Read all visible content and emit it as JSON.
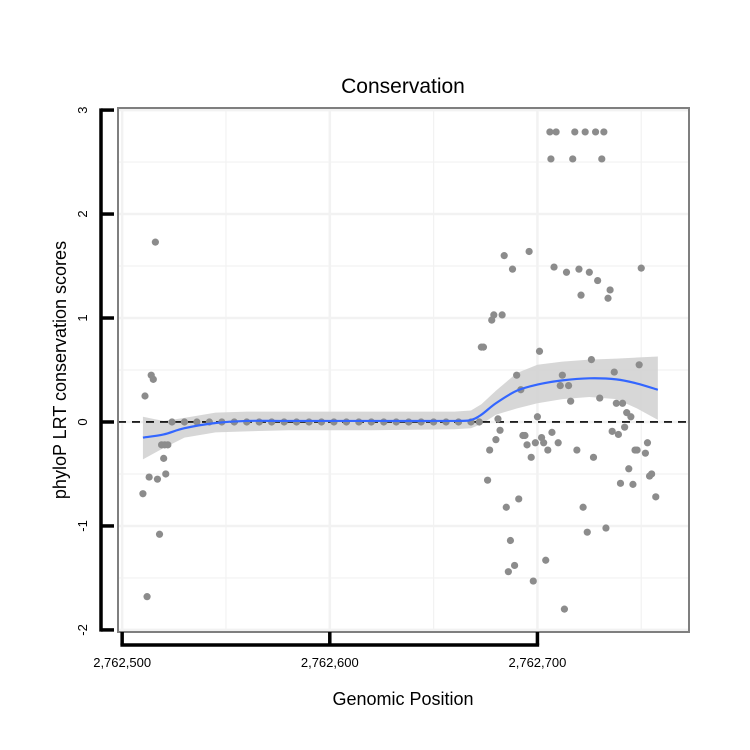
{
  "chart_data": {
    "type": "scatter",
    "title": "Conservation",
    "xlabel": "Genomic Position",
    "ylabel": "phyloP LRT conservation scores",
    "xlim": [
      2762498,
      2762773
    ],
    "ylim": [
      -2.02,
      3.02
    ],
    "x_ticks": [
      {
        "value": 2762500,
        "label": "2,762,500"
      },
      {
        "value": 2762600,
        "label": "2,762,600"
      },
      {
        "value": 2762700,
        "label": "2,762,700"
      }
    ],
    "y_ticks": [
      {
        "value": -2,
        "label": "-2"
      },
      {
        "value": -1,
        "label": "-1"
      },
      {
        "value": 0,
        "label": "0"
      },
      {
        "value": 1,
        "label": "1"
      },
      {
        "value": 2,
        "label": "2"
      },
      {
        "value": 3,
        "label": "3"
      }
    ],
    "reference_line": {
      "y": 0,
      "style": "dashed",
      "color": "#000000"
    },
    "colors": {
      "points": "#8c8c8c",
      "smooth_line": "#3366ff",
      "confidence_band": "#d3d3d3",
      "grid": "#f2f2f2",
      "panel_border": "#7f7f7f"
    },
    "points": [
      {
        "x": 2762510,
        "y": -0.69
      },
      {
        "x": 2762511,
        "y": 0.25
      },
      {
        "x": 2762512,
        "y": -1.68
      },
      {
        "x": 2762513,
        "y": -0.53
      },
      {
        "x": 2762514,
        "y": 0.45
      },
      {
        "x": 2762515,
        "y": 0.41
      },
      {
        "x": 2762516,
        "y": 1.73
      },
      {
        "x": 2762517,
        "y": -0.55
      },
      {
        "x": 2762518,
        "y": -1.08
      },
      {
        "x": 2762519,
        "y": -0.22
      },
      {
        "x": 2762520,
        "y": -0.35
      },
      {
        "x": 2762520.5,
        "y": -0.22
      },
      {
        "x": 2762521,
        "y": -0.5
      },
      {
        "x": 2762522,
        "y": -0.22
      },
      {
        "x": 2762524,
        "y": 0
      },
      {
        "x": 2762530,
        "y": 0
      },
      {
        "x": 2762536,
        "y": 0
      },
      {
        "x": 2762542,
        "y": 0
      },
      {
        "x": 2762548,
        "y": 0
      },
      {
        "x": 2762554,
        "y": 0
      },
      {
        "x": 2762560,
        "y": 0
      },
      {
        "x": 2762566,
        "y": 0
      },
      {
        "x": 2762572,
        "y": 0
      },
      {
        "x": 2762578,
        "y": 0
      },
      {
        "x": 2762584,
        "y": 0
      },
      {
        "x": 2762590,
        "y": 0
      },
      {
        "x": 2762596,
        "y": 0
      },
      {
        "x": 2762602,
        "y": 0
      },
      {
        "x": 2762608,
        "y": 0
      },
      {
        "x": 2762614,
        "y": 0
      },
      {
        "x": 2762620,
        "y": 0
      },
      {
        "x": 2762626,
        "y": 0
      },
      {
        "x": 2762632,
        "y": 0
      },
      {
        "x": 2762638,
        "y": 0
      },
      {
        "x": 2762644,
        "y": 0
      },
      {
        "x": 2762650,
        "y": 0
      },
      {
        "x": 2762656,
        "y": 0
      },
      {
        "x": 2762662,
        "y": 0
      },
      {
        "x": 2762668,
        "y": 0
      },
      {
        "x": 2762672,
        "y": 0
      },
      {
        "x": 2762673,
        "y": 0.72
      },
      {
        "x": 2762674,
        "y": 0.72
      },
      {
        "x": 2762676,
        "y": -0.56
      },
      {
        "x": 2762677,
        "y": -0.27
      },
      {
        "x": 2762678,
        "y": 0.98
      },
      {
        "x": 2762679,
        "y": 1.03
      },
      {
        "x": 2762680,
        "y": -0.17
      },
      {
        "x": 2762681,
        "y": 0.03
      },
      {
        "x": 2762682,
        "y": -0.08
      },
      {
        "x": 2762683,
        "y": 1.03
      },
      {
        "x": 2762684,
        "y": 1.6
      },
      {
        "x": 2762685,
        "y": -0.82
      },
      {
        "x": 2762686,
        "y": -1.44
      },
      {
        "x": 2762687,
        "y": -1.14
      },
      {
        "x": 2762688,
        "y": 1.47
      },
      {
        "x": 2762689,
        "y": -1.38
      },
      {
        "x": 2762690,
        "y": 0.45
      },
      {
        "x": 2762691,
        "y": -0.74
      },
      {
        "x": 2762692,
        "y": 0.31
      },
      {
        "x": 2762693,
        "y": -0.13
      },
      {
        "x": 2762694,
        "y": -0.13
      },
      {
        "x": 2762695,
        "y": -0.22
      },
      {
        "x": 2762696,
        "y": 1.64
      },
      {
        "x": 2762697,
        "y": -0.34
      },
      {
        "x": 2762698,
        "y": -1.53
      },
      {
        "x": 2762699,
        "y": -0.2
      },
      {
        "x": 2762700,
        "y": 0.05
      },
      {
        "x": 2762701,
        "y": 0.68
      },
      {
        "x": 2762702,
        "y": -0.15
      },
      {
        "x": 2762703,
        "y": -0.2
      },
      {
        "x": 2762704,
        "y": -1.33
      },
      {
        "x": 2762705,
        "y": -0.27
      },
      {
        "x": 2762706,
        "y": 2.79
      },
      {
        "x": 2762706.5,
        "y": 2.53
      },
      {
        "x": 2762707,
        "y": -0.1
      },
      {
        "x": 2762708,
        "y": 1.49
      },
      {
        "x": 2762709,
        "y": 2.79
      },
      {
        "x": 2762710,
        "y": -0.2
      },
      {
        "x": 2762711,
        "y": 0.35
      },
      {
        "x": 2762712,
        "y": 0.45
      },
      {
        "x": 2762713,
        "y": -1.8
      },
      {
        "x": 2762714,
        "y": 1.44
      },
      {
        "x": 2762715,
        "y": 0.35
      },
      {
        "x": 2762716,
        "y": 0.2
      },
      {
        "x": 2762717,
        "y": 2.53
      },
      {
        "x": 2762718,
        "y": 2.79
      },
      {
        "x": 2762719,
        "y": -0.27
      },
      {
        "x": 2762720,
        "y": 1.47
      },
      {
        "x": 2762721,
        "y": 1.22
      },
      {
        "x": 2762722,
        "y": -0.82
      },
      {
        "x": 2762723,
        "y": 2.79
      },
      {
        "x": 2762724,
        "y": -1.06
      },
      {
        "x": 2762725,
        "y": 1.44
      },
      {
        "x": 2762726,
        "y": 0.6
      },
      {
        "x": 2762727,
        "y": -0.34
      },
      {
        "x": 2762728,
        "y": 2.79
      },
      {
        "x": 2762729,
        "y": 1.36
      },
      {
        "x": 2762730,
        "y": 0.23
      },
      {
        "x": 2762731,
        "y": 2.53
      },
      {
        "x": 2762732,
        "y": 2.79
      },
      {
        "x": 2762733,
        "y": -1.02
      },
      {
        "x": 2762734,
        "y": 1.19
      },
      {
        "x": 2762735,
        "y": 1.27
      },
      {
        "x": 2762736,
        "y": -0.09
      },
      {
        "x": 2762737,
        "y": 0.48
      },
      {
        "x": 2762738,
        "y": 0.18
      },
      {
        "x": 2762739,
        "y": -0.12
      },
      {
        "x": 2762740,
        "y": -0.59
      },
      {
        "x": 2762741,
        "y": 0.18
      },
      {
        "x": 2762742,
        "y": -0.05
      },
      {
        "x": 2762743,
        "y": 0.09
      },
      {
        "x": 2762744,
        "y": -0.45
      },
      {
        "x": 2762745,
        "y": 0.05
      },
      {
        "x": 2762746,
        "y": -0.6
      },
      {
        "x": 2762747,
        "y": -0.27
      },
      {
        "x": 2762748,
        "y": -0.27
      },
      {
        "x": 2762749,
        "y": 0.55
      },
      {
        "x": 2762750,
        "y": 1.48
      },
      {
        "x": 2762752,
        "y": -0.3
      },
      {
        "x": 2762753,
        "y": -0.2
      },
      {
        "x": 2762754,
        "y": -0.52
      },
      {
        "x": 2762755,
        "y": -0.5
      },
      {
        "x": 2762757,
        "y": -0.72
      }
    ],
    "smooth_line": [
      {
        "x": 2762510,
        "y": -0.15
      },
      {
        "x": 2762520,
        "y": -0.12
      },
      {
        "x": 2762530,
        "y": -0.06
      },
      {
        "x": 2762545,
        "y": -0.01
      },
      {
        "x": 2762560,
        "y": 0.01
      },
      {
        "x": 2762580,
        "y": 0.01
      },
      {
        "x": 2762620,
        "y": 0.01
      },
      {
        "x": 2762660,
        "y": 0.01
      },
      {
        "x": 2762668,
        "y": 0.02
      },
      {
        "x": 2762673,
        "y": 0.07
      },
      {
        "x": 2762680,
        "y": 0.18
      },
      {
        "x": 2762690,
        "y": 0.3
      },
      {
        "x": 2762700,
        "y": 0.36
      },
      {
        "x": 2762712,
        "y": 0.4
      },
      {
        "x": 2762725,
        "y": 0.42
      },
      {
        "x": 2762738,
        "y": 0.41
      },
      {
        "x": 2762748,
        "y": 0.37
      },
      {
        "x": 2762758,
        "y": 0.31
      }
    ],
    "confidence_band": [
      {
        "x": 2762510,
        "lower": -0.36,
        "upper": 0.05
      },
      {
        "x": 2762520,
        "lower": -0.25,
        "upper": 0.01
      },
      {
        "x": 2762530,
        "lower": -0.15,
        "upper": 0.04
      },
      {
        "x": 2762545,
        "lower": -0.1,
        "upper": 0.09
      },
      {
        "x": 2762560,
        "lower": -0.09,
        "upper": 0.1
      },
      {
        "x": 2762580,
        "lower": -0.08,
        "upper": 0.1
      },
      {
        "x": 2762620,
        "lower": -0.08,
        "upper": 0.1
      },
      {
        "x": 2762660,
        "lower": -0.07,
        "upper": 0.1
      },
      {
        "x": 2762668,
        "lower": -0.06,
        "upper": 0.11
      },
      {
        "x": 2762673,
        "lower": -0.02,
        "upper": 0.17
      },
      {
        "x": 2762680,
        "lower": 0.07,
        "upper": 0.3
      },
      {
        "x": 2762690,
        "lower": 0.13,
        "upper": 0.47
      },
      {
        "x": 2762700,
        "lower": 0.18,
        "upper": 0.55
      },
      {
        "x": 2762712,
        "lower": 0.22,
        "upper": 0.58
      },
      {
        "x": 2762725,
        "lower": 0.24,
        "upper": 0.6
      },
      {
        "x": 2762738,
        "lower": 0.22,
        "upper": 0.61
      },
      {
        "x": 2762748,
        "lower": 0.13,
        "upper": 0.62
      },
      {
        "x": 2762758,
        "lower": 0.02,
        "upper": 0.63
      }
    ]
  }
}
